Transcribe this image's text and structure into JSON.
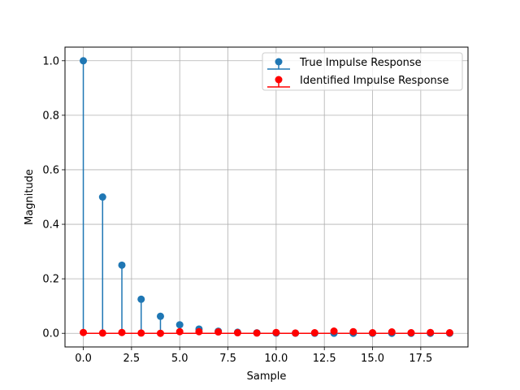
{
  "chart_data": {
    "type": "stem",
    "xlabel": "Sample",
    "ylabel": "Magnitude",
    "xlim": [
      -0.95,
      19.95
    ],
    "ylim": [
      -0.05,
      1.05
    ],
    "x_ticks": [
      0.0,
      2.5,
      5.0,
      7.5,
      10.0,
      12.5,
      15.0,
      17.5
    ],
    "x_tick_labels": [
      "0.0",
      "2.5",
      "5.0",
      "7.5",
      "10.0",
      "12.5",
      "15.0",
      "17.5"
    ],
    "y_ticks": [
      0.0,
      0.2,
      0.4,
      0.6,
      0.8,
      1.0
    ],
    "y_tick_labels": [
      "0.0",
      "0.2",
      "0.4",
      "0.6",
      "0.8",
      "1.0"
    ],
    "grid": true,
    "legend_position": "top-right",
    "x": [
      0,
      1,
      2,
      3,
      4,
      5,
      6,
      7,
      8,
      9,
      10,
      11,
      12,
      13,
      14,
      15,
      16,
      17,
      18,
      19
    ],
    "series": [
      {
        "name": "True Impulse Response",
        "color": "#1f77b4",
        "values": [
          1.0,
          0.5,
          0.25,
          0.125,
          0.0625,
          0.03125,
          0.015625,
          0.0078125,
          0.0039,
          0.00195,
          0.00098,
          0.00049,
          0.00024,
          0.00012,
          6e-05,
          3e-05,
          2e-05,
          1e-05,
          0.0,
          0.0
        ]
      },
      {
        "name": "Identified Impulse Response",
        "color": "#ff0000",
        "values": [
          0.003,
          0.001,
          0.003,
          0.001,
          0.0,
          0.006,
          0.006,
          0.005,
          0.002,
          0.001,
          0.003,
          0.001,
          0.002,
          0.008,
          0.006,
          0.002,
          0.005,
          0.002,
          0.003,
          0.002
        ]
      }
    ]
  }
}
